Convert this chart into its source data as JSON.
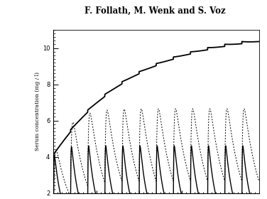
{
  "title": "F. Follath, M. Wenk and S. Voz",
  "ylabel": "Serum concentration (mg / l)",
  "ylim": [
    2,
    11
  ],
  "xlim": [
    0,
    48
  ],
  "yticks": [
    2,
    4,
    6,
    8,
    10
  ],
  "background_color": "#ffffff",
  "ka1": 15.0,
  "ke1": 0.55,
  "dose_amount1": 4.8,
  "dose_interval1": 4.0,
  "n_doses1": 12,
  "tissue_k": 0.055,
  "tissue_start": 4.0,
  "tissue_end": 10.8,
  "tissue_bump": 0.12,
  "tissue_bump_ke": 0.35,
  "ka2": 5.0,
  "ke2": 0.28,
  "dose_amount2": 5.5,
  "dose_interval2": 4.0,
  "n_doses2": 12
}
